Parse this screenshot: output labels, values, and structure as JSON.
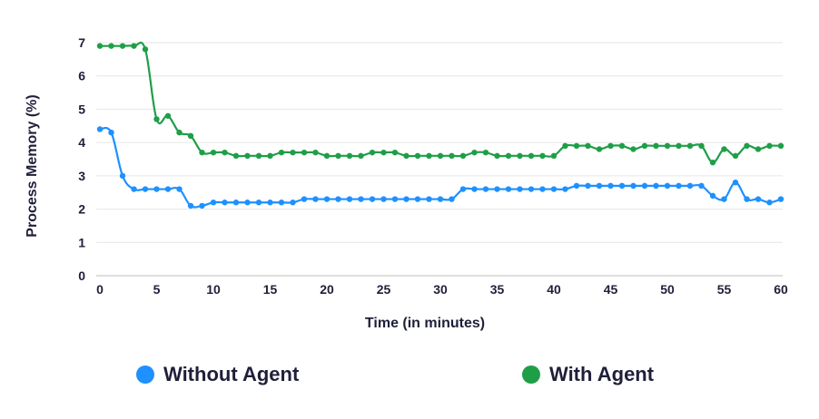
{
  "chart_data": {
    "type": "line",
    "xlabel": "Time (in minutes)",
    "ylabel": "Process Memory (%)",
    "xlim": [
      0,
      60
    ],
    "ylim": [
      0,
      7
    ],
    "xticks": [
      "0",
      "5",
      "10",
      "15",
      "20",
      "25",
      "30",
      "35",
      "40",
      "45",
      "50",
      "55",
      "60"
    ],
    "yticks": [
      "0",
      "1",
      "2",
      "3",
      "4",
      "5",
      "6",
      "7"
    ],
    "grid": true,
    "legend_position": "bottom",
    "x": [
      0,
      1,
      2,
      3,
      4,
      5,
      6,
      7,
      8,
      9,
      10,
      11,
      12,
      13,
      14,
      15,
      16,
      17,
      18,
      19,
      20,
      21,
      22,
      23,
      24,
      25,
      26,
      27,
      28,
      29,
      30,
      31,
      32,
      33,
      34,
      35,
      36,
      37,
      38,
      39,
      40,
      41,
      42,
      43,
      44,
      45,
      46,
      47,
      48,
      49,
      50,
      51,
      52,
      53,
      54,
      55,
      56,
      57,
      58,
      59,
      60
    ],
    "series": [
      {
        "name": "Without Agent",
        "color": "#1e90ff",
        "values": [
          4.4,
          4.3,
          3.0,
          2.6,
          2.6,
          2.6,
          2.6,
          2.6,
          2.1,
          2.1,
          2.2,
          2.2,
          2.2,
          2.2,
          2.2,
          2.2,
          2.2,
          2.2,
          2.3,
          2.3,
          2.3,
          2.3,
          2.3,
          2.3,
          2.3,
          2.3,
          2.3,
          2.3,
          2.3,
          2.3,
          2.3,
          2.3,
          2.6,
          2.6,
          2.6,
          2.6,
          2.6,
          2.6,
          2.6,
          2.6,
          2.6,
          2.6,
          2.7,
          2.7,
          2.7,
          2.7,
          2.7,
          2.7,
          2.7,
          2.7,
          2.7,
          2.7,
          2.7,
          2.7,
          2.4,
          2.3,
          2.8,
          2.3,
          2.3,
          2.2,
          2.3
        ]
      },
      {
        "name": "With Agent",
        "color": "#1f9e48",
        "values": [
          6.9,
          6.9,
          6.9,
          6.9,
          6.8,
          4.7,
          4.8,
          4.3,
          4.2,
          3.7,
          3.7,
          3.7,
          3.6,
          3.6,
          3.6,
          3.6,
          3.7,
          3.7,
          3.7,
          3.7,
          3.6,
          3.6,
          3.6,
          3.6,
          3.7,
          3.7,
          3.7,
          3.6,
          3.6,
          3.6,
          3.6,
          3.6,
          3.6,
          3.7,
          3.7,
          3.6,
          3.6,
          3.6,
          3.6,
          3.6,
          3.6,
          3.9,
          3.9,
          3.9,
          3.8,
          3.9,
          3.9,
          3.8,
          3.9,
          3.9,
          3.9,
          3.9,
          3.9,
          3.9,
          3.4,
          3.8,
          3.6,
          3.9,
          3.8,
          3.9,
          3.9
        ]
      }
    ]
  }
}
